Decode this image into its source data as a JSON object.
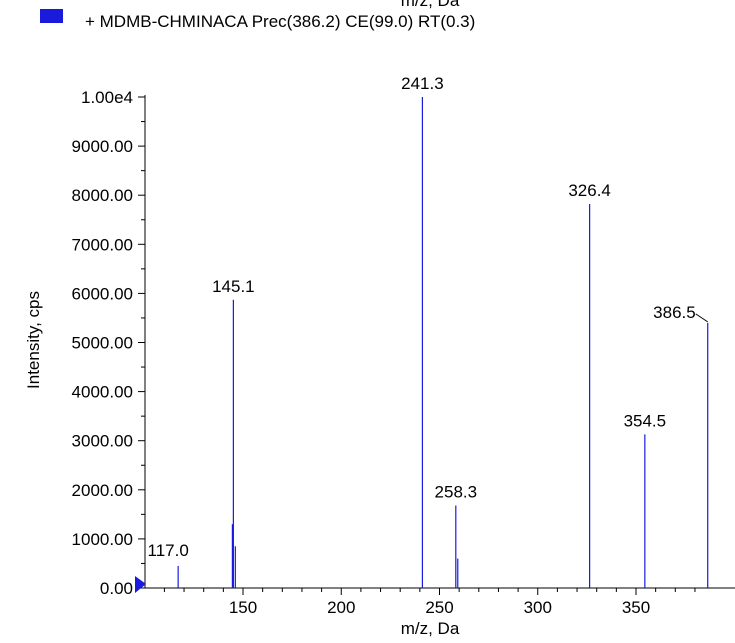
{
  "header_fragment": "m/z, Da",
  "chart_data": {
    "type": "bar",
    "xlabel": "m/z, Da",
    "ylabel": "Intensity, cps",
    "xlim": [
      100,
      390
    ],
    "ylim": [
      0,
      10000
    ],
    "x_ticks": [
      150,
      200,
      250,
      300,
      350
    ],
    "x_tick_labels": [
      "150",
      "200",
      "250",
      "300",
      "350"
    ],
    "y_ticks": [
      0,
      1000,
      2000,
      3000,
      4000,
      5000,
      6000,
      7000,
      8000,
      9000,
      10000
    ],
    "y_tick_labels": [
      "0.00",
      "1000.00",
      "2000.00",
      "3000.00",
      "4000.00",
      "5000.00",
      "6000.00",
      "7000.00",
      "8000.00",
      "9000.00",
      "1.00e4"
    ],
    "legend": "top-left",
    "series": [
      {
        "name": "+ MDMB-CHMINACA Prec(386.2) CE(99.0) RT(0.3)",
        "color": "#1a1adb",
        "peaks": [
          {
            "x": 117.0,
            "y": 450,
            "label": "117.0"
          },
          {
            "x": 144.6,
            "y": 1300,
            "label": ""
          },
          {
            "x": 145.1,
            "y": 5870,
            "label": "145.1"
          },
          {
            "x": 146.1,
            "y": 850,
            "label": ""
          },
          {
            "x": 241.3,
            "y": 10000,
            "label": "241.3"
          },
          {
            "x": 258.3,
            "y": 1680,
            "label": "258.3"
          },
          {
            "x": 259.3,
            "y": 600,
            "label": ""
          },
          {
            "x": 326.4,
            "y": 7820,
            "label": "326.4"
          },
          {
            "x": 354.5,
            "y": 3130,
            "label": "354.5"
          },
          {
            "x": 386.5,
            "y": 5400,
            "label": "386.5"
          }
        ]
      }
    ]
  }
}
